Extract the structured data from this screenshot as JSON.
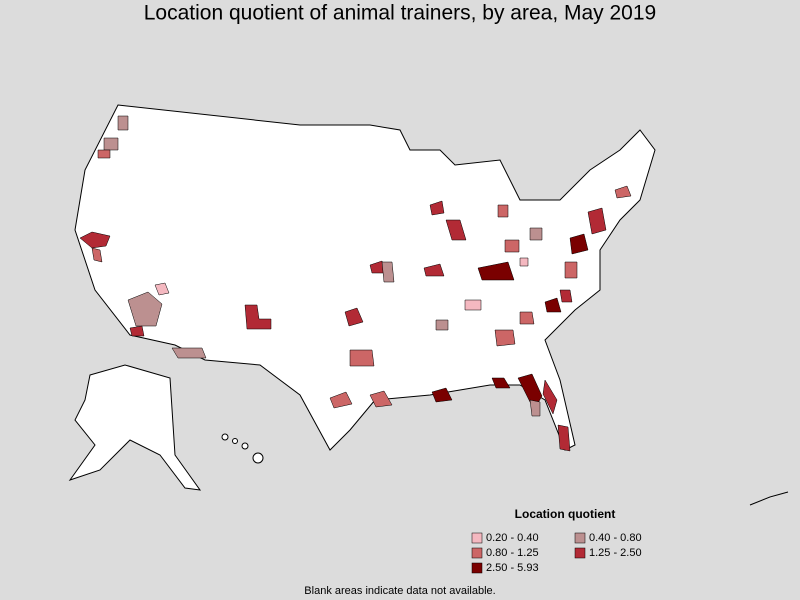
{
  "title": "Location quotient of animal trainers, by area, May 2019",
  "legend": {
    "title": "Location quotient",
    "entries": [
      {
        "label": "0.20 - 0.40",
        "color": "#f4b8c0"
      },
      {
        "label": "0.40 - 0.80",
        "color": "#bc9090"
      },
      {
        "label": "0.80 - 1.25",
        "color": "#cc6666"
      },
      {
        "label": "1.25 - 2.50",
        "color": "#b22a35"
      },
      {
        "label": "2.50 - 5.93",
        "color": "#7a0000"
      }
    ]
  },
  "footnote": "Blank areas indicate data not available."
}
